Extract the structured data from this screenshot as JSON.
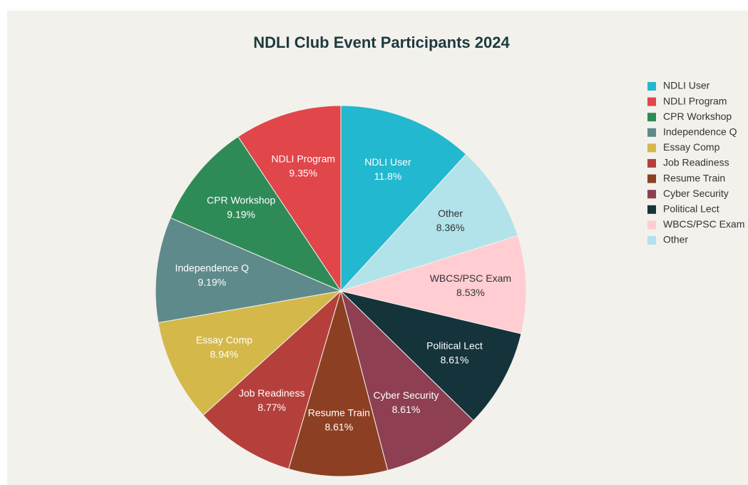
{
  "chart_data": {
    "type": "pie",
    "title": "NDLI Club Event Participants 2024",
    "categories": [
      "NDLI User",
      "NDLI Program",
      "CPR Workshop",
      "Independence Q",
      "Essay Comp",
      "Job Readiness",
      "Resume Train",
      "Cyber Security",
      "Political Lect",
      "WBCS/PSC Exam",
      "Other"
    ],
    "values": [
      11.8,
      9.35,
      9.19,
      9.19,
      8.94,
      8.77,
      8.61,
      8.61,
      8.61,
      8.53,
      8.36
    ],
    "value_labels": [
      "11.8%",
      "9.35%",
      "9.19%",
      "9.19%",
      "8.94%",
      "8.77%",
      "8.61%",
      "8.61%",
      "8.61%",
      "8.53%",
      "8.36%"
    ],
    "colors": [
      "#22b8cf",
      "#e0464a",
      "#2e8b57",
      "#5f8a8b",
      "#d4b84a",
      "#b5403b",
      "#8c3f22",
      "#8e3f52",
      "#15333b",
      "#ffcdd2",
      "#b2e3ea"
    ],
    "legend": "right"
  }
}
